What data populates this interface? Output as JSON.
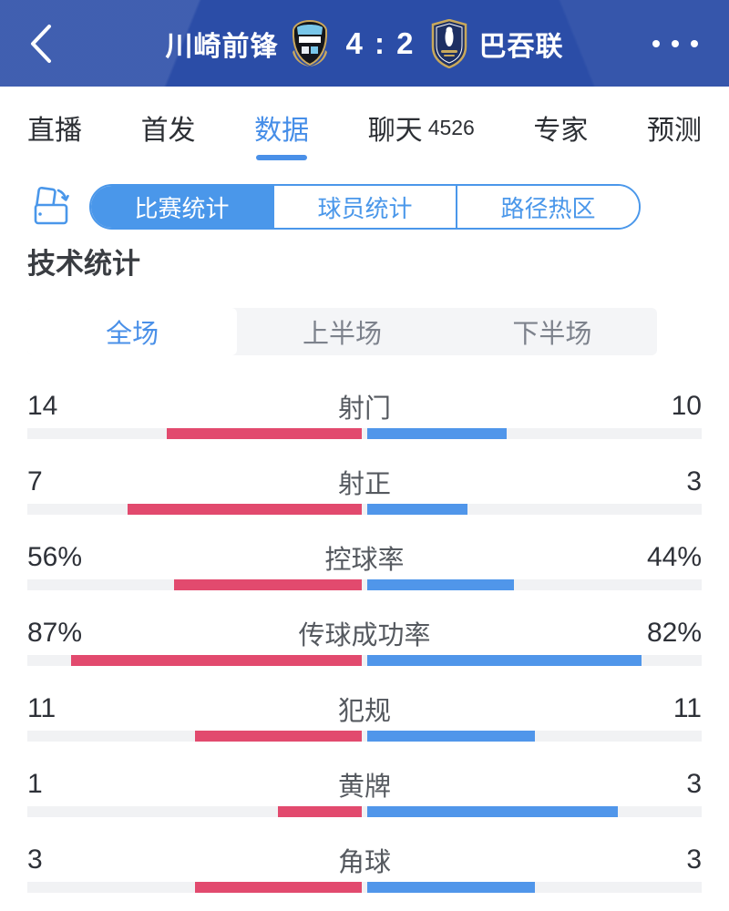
{
  "header": {
    "home_team": "川崎前锋",
    "score": "4 : 2",
    "away_team": "巴吞联",
    "back_icon": "chevron-left",
    "more_icon": "ellipsis"
  },
  "tabs": {
    "items": [
      {
        "label": "直播",
        "active": false
      },
      {
        "label": "首发",
        "active": false
      },
      {
        "label": "数据",
        "active": true
      },
      {
        "label": "聊天",
        "count": "4526",
        "active": false
      },
      {
        "label": "专家",
        "active": false
      },
      {
        "label": "预测",
        "active": false
      }
    ]
  },
  "stat_tabs": {
    "items": [
      {
        "label": "比赛统计",
        "active": true
      },
      {
        "label": "球员统计",
        "active": false
      },
      {
        "label": "路径热区",
        "active": false
      }
    ]
  },
  "section_title": "技术统计",
  "period_tabs": {
    "items": [
      {
        "label": "全场",
        "active": true
      },
      {
        "label": "上半场",
        "active": false
      },
      {
        "label": "下半场",
        "active": false
      }
    ]
  },
  "chart_data": {
    "type": "bar",
    "orientation": "horizontal-paired-from-center",
    "legend_position": "none",
    "series": [
      {
        "name": "川崎前锋",
        "color": "#e24a6e",
        "side": "left"
      },
      {
        "name": "巴吞联",
        "color": "#5096ea",
        "side": "right"
      }
    ],
    "rows": [
      {
        "label": "射门",
        "home": 14,
        "away": 10,
        "percent": false
      },
      {
        "label": "射正",
        "home": 7,
        "away": 3,
        "percent": false
      },
      {
        "label": "控球率",
        "home": 56,
        "away": 44,
        "percent": true
      },
      {
        "label": "传球成功率",
        "home": 87,
        "away": 82,
        "percent": true
      },
      {
        "label": "犯规",
        "home": 11,
        "away": 11,
        "percent": false
      },
      {
        "label": "黄牌",
        "home": 1,
        "away": 3,
        "percent": false
      },
      {
        "label": "角球",
        "home": 3,
        "away": 3,
        "percent": false
      }
    ]
  },
  "colors": {
    "header_bg": "#2b4da7",
    "accent_blue": "#4a97ea",
    "tab_active_blue": "#468ee8",
    "home_bar": "#e24a6e",
    "away_bar": "#5096ea",
    "bar_track": "#f1f2f4"
  }
}
